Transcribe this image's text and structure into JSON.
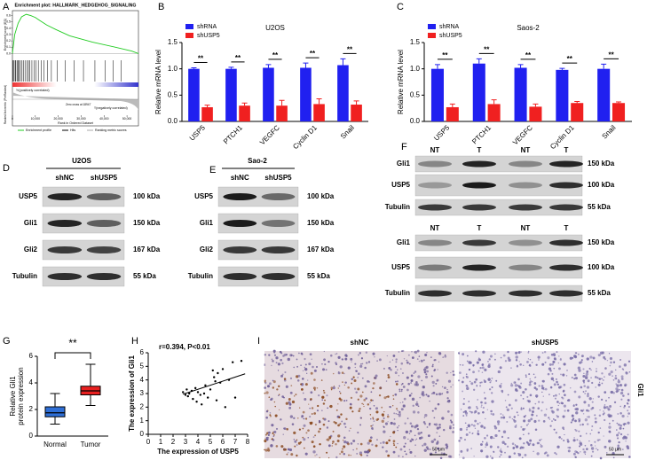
{
  "panel_letters": [
    "A",
    "B",
    "C",
    "D",
    "E",
    "F",
    "G",
    "H",
    "I"
  ],
  "chart_data": [
    {
      "type": "gsea",
      "title": "Enrichment plot: HALLMARK_HEDGEHOG_SIGNALING",
      "ylabel": "Enrichment score (ES)",
      "ylabel2": "Ranked list metric (PreRanked)",
      "xlabel": "Rank in Ordered Dataset",
      "x": [
        0,
        1000,
        2500,
        4000,
        6000,
        8000,
        10000,
        12000,
        15000,
        18947,
        25000,
        35000,
        45000,
        52000,
        55000
      ],
      "values": [
        0,
        0.3,
        0.48,
        0.58,
        0.62,
        0.6,
        0.57,
        0.52,
        0.45,
        0.38,
        0.28,
        0.18,
        0.1,
        0.04,
        0
      ],
      "color": "#22cc22",
      "hits": [
        300,
        700,
        1200,
        1500,
        2100,
        2600,
        3000,
        3500,
        4200,
        4800,
        5500,
        6300,
        7000,
        7600,
        8500,
        9400,
        10200,
        11300,
        12500,
        13800,
        15200,
        17000,
        19500,
        23000,
        27000,
        31000,
        36000,
        40500,
        44000,
        47500
      ],
      "xlim": [
        0,
        55000
      ],
      "ylim": [
        -0.05,
        0.65
      ],
      "xticks": [
        0,
        {
          "value": 10000,
          "label": "10,000"
        },
        {
          "value": 20000,
          "label": "20,000"
        },
        {
          "value": 30000,
          "label": "30,000"
        },
        {
          "value": 40000,
          "label": "40,000"
        },
        {
          "value": 50000,
          "label": "50,000"
        }
      ],
      "yticks": [
        {
          "value": 0,
          "label": "0.0"
        },
        0.1,
        0.2,
        0.3,
        0.4,
        0.5,
        0.6
      ],
      "annotations": [
        "'h'(positively correlated)",
        "Zero cross at 18947",
        "'l'(negatively correlated)"
      ],
      "legend_labels": [
        "Enrichment profile",
        "Hits",
        "Ranking metric scores"
      ]
    },
    {
      "type": "bar",
      "title": "U2OS",
      "ylabel": "Relative mRNA level",
      "categories": [
        "USP5",
        "PTCH1",
        "VEGFC",
        "Cyclin D1",
        "Snail"
      ],
      "series": [
        {
          "name": "shRNA",
          "color": "#2020f0",
          "values": [
            1.0,
            1.0,
            1.02,
            1.02,
            1.07
          ],
          "errors": [
            0.02,
            0.03,
            0.06,
            0.09,
            0.12
          ]
        },
        {
          "name": "shUSP5",
          "color": "#f02020",
          "values": [
            0.27,
            0.3,
            0.3,
            0.33,
            0.32
          ],
          "errors": [
            0.04,
            0.05,
            0.1,
            0.1,
            0.07
          ]
        }
      ],
      "ylim": [
        0,
        1.5
      ],
      "yticks": [
        {
          "value": 0,
          "label": "0.0"
        },
        0.5,
        {
          "value": 1,
          "label": "1.0"
        },
        1.5
      ],
      "annotations": [
        "**",
        "**",
        "**",
        "**",
        "**"
      ],
      "legend": "upper left"
    },
    {
      "type": "bar",
      "title": "Saos-2",
      "ylabel": "Relative mRNA level",
      "categories": [
        "USP5",
        "PTCH1",
        "VEGFC",
        "Cyclin D1",
        "Snail"
      ],
      "series": [
        {
          "name": "shRNA",
          "color": "#2020f0",
          "values": [
            1.0,
            1.1,
            1.02,
            0.98,
            1.0
          ],
          "errors": [
            0.08,
            0.09,
            0.06,
            0.03,
            0.09
          ]
        },
        {
          "name": "shUSP5",
          "color": "#f02020",
          "values": [
            0.27,
            0.33,
            0.28,
            0.35,
            0.35
          ],
          "errors": [
            0.06,
            0.08,
            0.05,
            0.03,
            0.02
          ]
        }
      ],
      "ylim": [
        0,
        1.5
      ],
      "yticks": [
        {
          "value": 0,
          "label": "0.0"
        },
        0.5,
        {
          "value": 1,
          "label": "1.0"
        },
        1.5
      ],
      "annotations": [
        "**",
        "**",
        "**",
        "**",
        "**"
      ],
      "legend": "upper left"
    },
    {
      "type": "box",
      "ylabel": [
        "Relative Gli1",
        "protein expression"
      ],
      "categories": [
        "Normal",
        "Tumor"
      ],
      "boxes": [
        {
          "min": 0.9,
          "q1": 1.45,
          "median": 1.75,
          "q3": 2.2,
          "max": 3.2,
          "color": "#2f6fd6"
        },
        {
          "min": 2.3,
          "q1": 3.1,
          "median": 3.4,
          "q3": 3.75,
          "max": 5.4,
          "color": "#e82020"
        }
      ],
      "ylim": [
        0,
        6
      ],
      "yticks": [
        0,
        2,
        4,
        6
      ],
      "annotation": "**"
    },
    {
      "type": "scatter",
      "xlabel": "The expression of USP5",
      "ylabel": "The expression of Gli1",
      "annotation": "r=0.394,   P<0.01",
      "x": [
        2.8,
        3.0,
        3.1,
        3.2,
        3.3,
        3.5,
        3.6,
        3.8,
        3.9,
        4.0,
        4.2,
        4.3,
        4.5,
        4.6,
        4.8,
        5.0,
        5.2,
        5.3,
        5.4,
        5.5,
        5.6,
        5.8,
        6.0,
        6.2,
        6.5,
        6.8,
        7.0,
        7.5
      ],
      "values": [
        3.1,
        2.9,
        3.3,
        2.8,
        3.0,
        3.2,
        2.6,
        3.4,
        2.4,
        3.1,
        2.9,
        2.2,
        3.0,
        3.6,
        2.7,
        3.3,
        4.7,
        4.2,
        3.9,
        2.5,
        4.5,
        3.8,
        4.8,
        2.0,
        4.0,
        5.3,
        2.7,
        5.4
      ],
      "trendline": {
        "x": [
          2.8,
          7.8
        ],
        "y": [
          2.95,
          4.45
        ]
      },
      "xlim": [
        0,
        8
      ],
      "ylim": [
        0,
        6
      ],
      "xticks": [
        0,
        1,
        2,
        3,
        4,
        5,
        6,
        7,
        8
      ],
      "yticks": [
        0,
        1,
        2,
        3,
        4,
        5,
        6
      ]
    }
  ],
  "blots": [
    {
      "header": "U2OS",
      "lanes": [
        "shNC",
        "shUSP5"
      ],
      "rows": [
        {
          "protein": "USP5",
          "size": "100 kDa"
        },
        {
          "protein": "Gli1",
          "size": "150 kDa"
        },
        {
          "protein": "Gli2",
          "size": "167 kDa"
        },
        {
          "protein": "Tubulin",
          "size": "55 kDa"
        }
      ]
    },
    {
      "header": "Sao-2",
      "lanes": [
        "shNC",
        "shUSP5"
      ],
      "rows": [
        {
          "protein": "USP5",
          "size": "100 kDa"
        },
        {
          "protein": "Gli1",
          "size": "150 kDa"
        },
        {
          "protein": "Gli2",
          "size": "167 kDa"
        },
        {
          "protein": "Tubulin",
          "size": "55 kDa"
        }
      ]
    },
    {
      "blocks": [
        {
          "lanes": [
            "NT",
            "T",
            "NT",
            "T"
          ],
          "rows": [
            {
              "protein": "Gli1",
              "size": "150 kDa"
            },
            {
              "protein": "USP5",
              "size": "100 kDa"
            },
            {
              "protein": "Tubulin",
              "size": "55 kDa"
            }
          ]
        },
        {
          "lanes": [
            "NT",
            "T",
            "NT",
            "T"
          ],
          "rows": [
            {
              "protein": "Gli1",
              "size": "150 kDa"
            },
            {
              "protein": "USP5",
              "size": "100 kDa"
            },
            {
              "protein": "Tubulin",
              "size": "55 kDa"
            }
          ]
        }
      ]
    }
  ],
  "ihc": {
    "groups": [
      "shNC",
      "shUSP5"
    ],
    "stain": "Gli1",
    "scale_bars": [
      "50 μm",
      "50 μm"
    ]
  }
}
